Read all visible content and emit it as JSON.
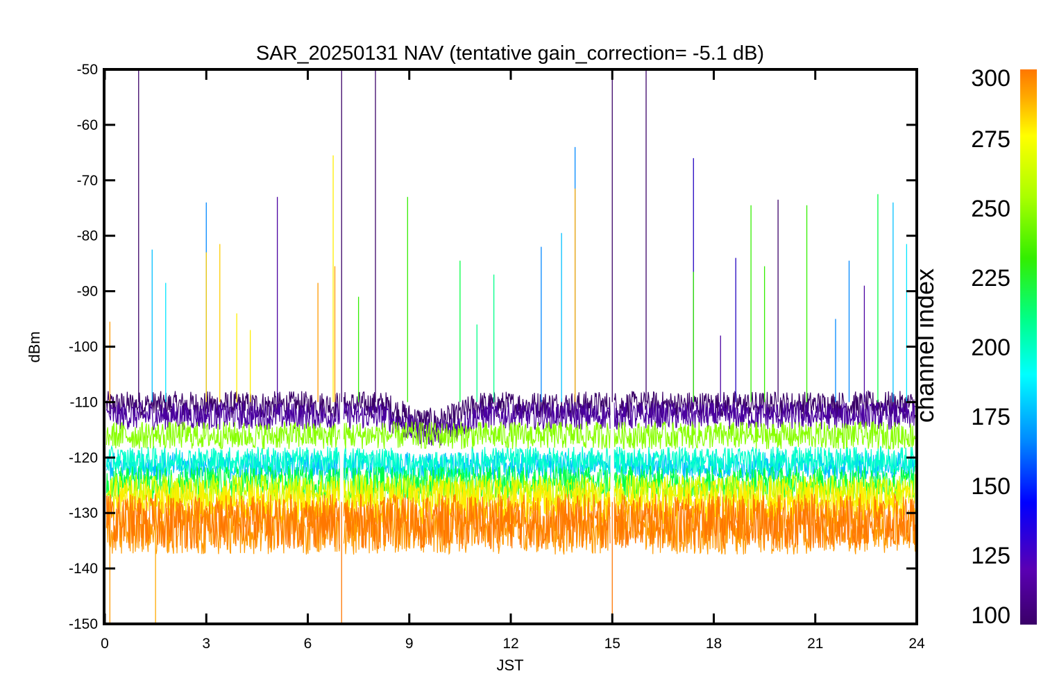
{
  "chart_data": {
    "type": "line",
    "title": "SAR_20250131 NAV (tentative gain_correction= -5.1 dB)",
    "xlabel": "JST",
    "ylabel": "dBm",
    "xlim": [
      0,
      24
    ],
    "ylim": [
      -150,
      -50
    ],
    "xticks": [
      0,
      3,
      6,
      9,
      12,
      15,
      18,
      21,
      24
    ],
    "yticks": [
      -50,
      -60,
      -70,
      -80,
      -90,
      -100,
      -110,
      -120,
      -130,
      -140,
      -150
    ],
    "grid": false,
    "colorbar": {
      "title": "channel index",
      "range": [
        100,
        300
      ],
      "ticks": [
        100,
        125,
        150,
        175,
        200,
        225,
        250,
        275,
        300
      ],
      "colormap": [
        "#3a0068",
        "#5a00b4",
        "#0000ff",
        "#0088ff",
        "#00ffff",
        "#00ff88",
        "#33ee00",
        "#aaff00",
        "#ffff00",
        "#ffaa00",
        "#ff7700"
      ]
    },
    "data_gaps_x": [
      7.0,
      15.0
    ],
    "series": [
      {
        "channel": 105,
        "color": "#3a0068",
        "level": -110.5,
        "spread": 2.5
      },
      {
        "channel": 120,
        "color": "#4a00a0",
        "level": -112.5,
        "spread": 2.5
      },
      {
        "channel": 165,
        "color": "#00bfff",
        "level": -121.5,
        "spread": 2.5
      },
      {
        "channel": 185,
        "color": "#00ffcc",
        "level": -120.5,
        "spread": 2.5
      },
      {
        "channel": 215,
        "color": "#00ff44",
        "level": -124.5,
        "spread": 3
      },
      {
        "channel": 240,
        "color": "#88ff00",
        "level": -116,
        "spread": 2.5
      },
      {
        "channel": 260,
        "color": "#ccff00",
        "level": -126,
        "spread": 3
      },
      {
        "channel": 275,
        "color": "#ffee00",
        "level": -128,
        "spread": 4
      },
      {
        "channel": 290,
        "color": "#ff9900",
        "level": -132.5,
        "spread": 5
      },
      {
        "channel": 300,
        "color": "#ff7700",
        "level": -131.5,
        "spread": 5
      }
    ],
    "spikes": [
      {
        "x": 0.15,
        "y": -95.5,
        "color": "#ff9900"
      },
      {
        "x": 0.15,
        "y": -150,
        "color": "#ff9900"
      },
      {
        "x": 1.0,
        "y": -50,
        "color": "#3a0068"
      },
      {
        "x": 1.4,
        "y": -82.5,
        "color": "#00bfff"
      },
      {
        "x": 1.5,
        "y": -150,
        "color": "#ffaa00"
      },
      {
        "x": 1.8,
        "y": -88.5,
        "color": "#00e5ff"
      },
      {
        "x": 3.0,
        "y": -74,
        "color": "#0088ff"
      },
      {
        "x": 3.0,
        "y": -83,
        "color": "#ffcc00"
      },
      {
        "x": 3.4,
        "y": -81.5,
        "color": "#ffcc00"
      },
      {
        "x": 3.9,
        "y": -94,
        "color": "#ffee00"
      },
      {
        "x": 4.3,
        "y": -97,
        "color": "#ffee00"
      },
      {
        "x": 5.1,
        "y": -73,
        "color": "#4a00a0"
      },
      {
        "x": 6.3,
        "y": -88.5,
        "color": "#ff9900"
      },
      {
        "x": 6.75,
        "y": -65.5,
        "color": "#ffee00"
      },
      {
        "x": 6.8,
        "y": -85.5,
        "color": "#ff9900"
      },
      {
        "x": 7.0,
        "y": -50,
        "color": "#3a0068"
      },
      {
        "x": 7.0,
        "y": -150,
        "color": "#ff7700"
      },
      {
        "x": 7.5,
        "y": -91,
        "color": "#33ee00"
      },
      {
        "x": 8.0,
        "y": -50,
        "color": "#3a0068"
      },
      {
        "x": 8.95,
        "y": -73,
        "color": "#33ee00"
      },
      {
        "x": 10.5,
        "y": -84.5,
        "color": "#00ff44"
      },
      {
        "x": 11.0,
        "y": -96,
        "color": "#00ff88"
      },
      {
        "x": 11.5,
        "y": -87,
        "color": "#00ff88"
      },
      {
        "x": 12.9,
        "y": -82,
        "color": "#0088ff"
      },
      {
        "x": 13.5,
        "y": -79.5,
        "color": "#00bfff"
      },
      {
        "x": 13.9,
        "y": -64,
        "color": "#0088ff"
      },
      {
        "x": 13.9,
        "y": -71.5,
        "color": "#ffaa00"
      },
      {
        "x": 15.0,
        "y": -50,
        "color": "#3a0068"
      },
      {
        "x": 15.0,
        "y": -150,
        "color": "#ff7700"
      },
      {
        "x": 16.0,
        "y": -50,
        "color": "#3a0068"
      },
      {
        "x": 17.4,
        "y": -66,
        "color": "#2000c0"
      },
      {
        "x": 17.4,
        "y": -86.5,
        "color": "#33ee00"
      },
      {
        "x": 18.2,
        "y": -98,
        "color": "#4a00a0"
      },
      {
        "x": 18.65,
        "y": -84,
        "color": "#2000c0"
      },
      {
        "x": 19.1,
        "y": -74.5,
        "color": "#33ee00"
      },
      {
        "x": 19.5,
        "y": -85.5,
        "color": "#33ee00"
      },
      {
        "x": 19.9,
        "y": -73.5,
        "color": "#3a0068"
      },
      {
        "x": 20.75,
        "y": -74.5,
        "color": "#33ee00"
      },
      {
        "x": 21.6,
        "y": -95,
        "color": "#0088ff"
      },
      {
        "x": 22.0,
        "y": -84.5,
        "color": "#0088ff"
      },
      {
        "x": 22.45,
        "y": -89,
        "color": "#4a00a0"
      },
      {
        "x": 22.85,
        "y": -72.5,
        "color": "#00ff44"
      },
      {
        "x": 23.3,
        "y": -74,
        "color": "#00bfff"
      },
      {
        "x": 23.7,
        "y": -81.5,
        "color": "#00e5ff"
      }
    ]
  }
}
